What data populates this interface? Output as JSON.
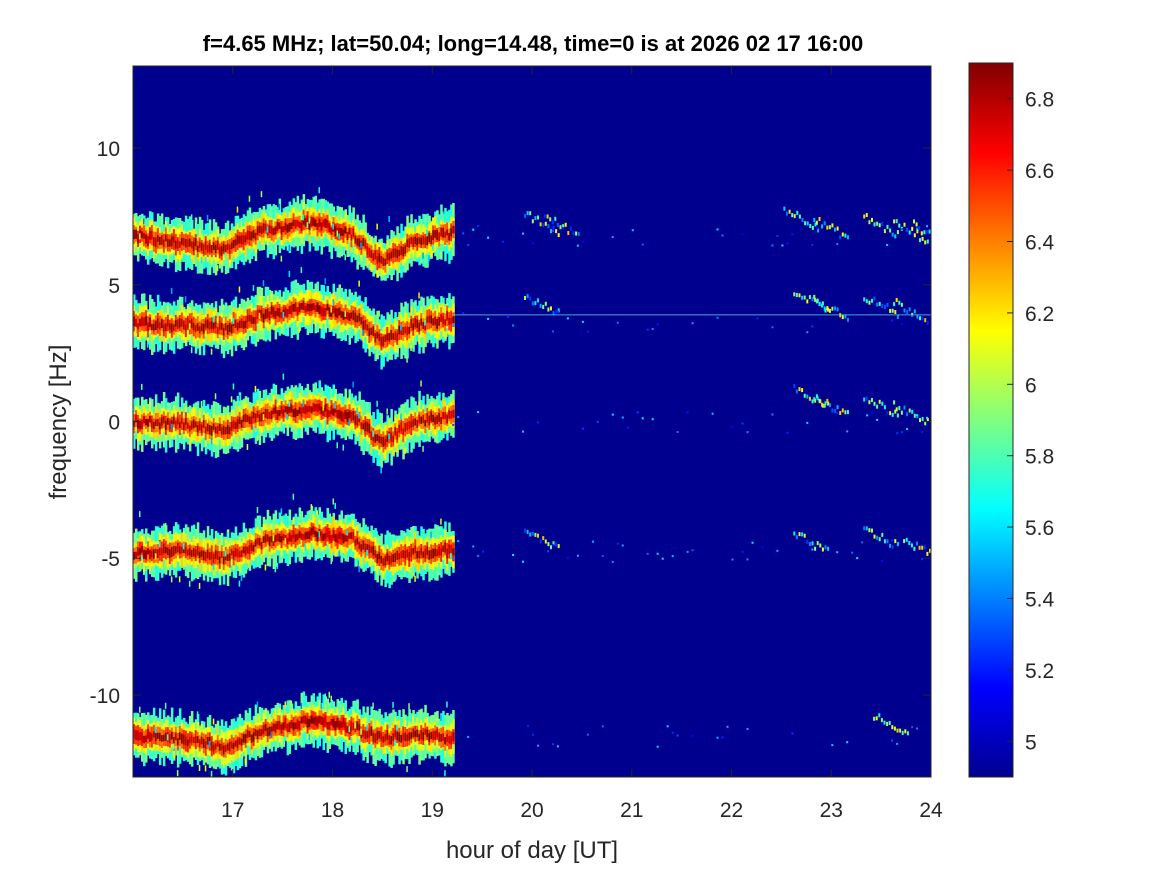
{
  "chart_data": {
    "type": "heatmap",
    "title": "f=4.65 MHz;  lat=50.04; long=14.48, time=0 is at 2026 02 17 16:00",
    "xlabel": "hour of day [UT]",
    "ylabel": "frequency [Hz]",
    "xlim": [
      16,
      24
    ],
    "ylim": [
      -13,
      13
    ],
    "xticks": [
      17,
      18,
      19,
      20,
      21,
      22,
      23,
      24
    ],
    "yticks": [
      -10,
      -5,
      0,
      5,
      10
    ],
    "colormap": "jet",
    "clim": [
      4.9,
      6.9
    ],
    "colorbar_ticks": [
      5,
      5.2,
      5.4,
      5.6,
      5.8,
      6,
      6.2,
      6.4,
      6.6,
      6.8
    ],
    "background_color": "#00008f",
    "bands": [
      {
        "center_hz": 6.8,
        "trace_hours": [
          16.0,
          16.5,
          16.9,
          17.3,
          17.8,
          18.2,
          18.5,
          18.8,
          19.2
        ],
        "trace_hz": [
          6.8,
          6.5,
          6.3,
          7.0,
          7.3,
          6.8,
          5.8,
          6.6,
          6.9
        ],
        "late_hours": [
          20.1,
          20.3,
          22.7,
          23.0,
          23.5,
          23.8,
          24.0
        ],
        "late_hz": [
          7.1,
          7.0,
          7.3,
          6.9,
          7.0,
          6.8,
          6.7
        ]
      },
      {
        "center_hz": 3.7,
        "trace_hours": [
          16.0,
          16.5,
          16.9,
          17.3,
          17.8,
          18.2,
          18.5,
          18.8,
          19.2
        ],
        "trace_hz": [
          3.6,
          3.5,
          3.4,
          3.9,
          4.2,
          3.9,
          2.9,
          3.5,
          3.8
        ],
        "late_hours": [
          20.1,
          22.8,
          23.0,
          23.5,
          23.8
        ],
        "late_hz": [
          4.1,
          4.3,
          4.0,
          4.1,
          3.9
        ],
        "carrier_line_hz": 3.9
      },
      {
        "center_hz": 0,
        "trace_hours": [
          16.0,
          16.5,
          16.9,
          17.3,
          17.8,
          18.2,
          18.5,
          18.8,
          19.2
        ],
        "trace_hz": [
          0.0,
          -0.1,
          -0.3,
          0.3,
          0.5,
          0.2,
          -0.8,
          0.0,
          0.2
        ],
        "late_hours": [
          22.8,
          23.0,
          23.5,
          23.8
        ],
        "late_hz": [
          0.7,
          0.4,
          0.4,
          0.1
        ]
      },
      {
        "center_hz": -4.7,
        "trace_hours": [
          16.0,
          16.5,
          16.9,
          17.3,
          17.8,
          18.2,
          18.5,
          18.8,
          19.2
        ],
        "trace_hz": [
          -4.8,
          -4.7,
          -5.0,
          -4.4,
          -4.1,
          -4.3,
          -5.1,
          -4.8,
          -4.7
        ],
        "late_hours": [
          20.1,
          22.8,
          23.5,
          23.9
        ],
        "late_hz": [
          -4.5,
          -4.6,
          -4.4,
          -4.8
        ]
      },
      {
        "center_hz": -11.5,
        "trace_hours": [
          16.0,
          16.5,
          16.9,
          17.3,
          17.8,
          18.2,
          18.5,
          18.8,
          19.2
        ],
        "trace_hz": [
          -11.5,
          -11.6,
          -11.9,
          -11.3,
          -10.9,
          -11.2,
          -11.6,
          -11.4,
          -11.6
        ],
        "late_hours": [
          23.6
        ],
        "late_hz": [
          -11.2
        ]
      }
    ]
  }
}
